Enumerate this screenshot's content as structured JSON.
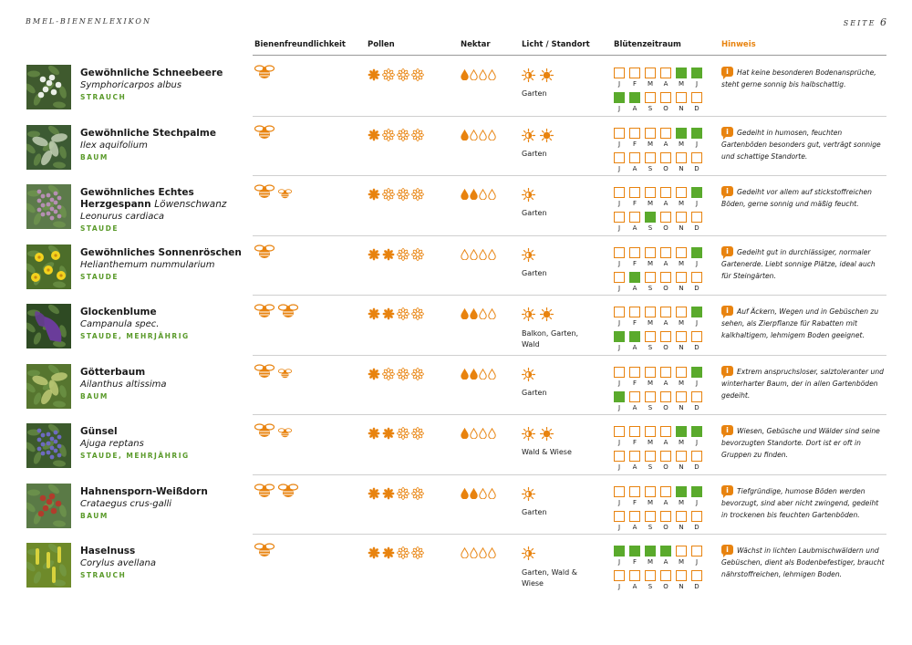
{
  "header": {
    "left": "BMEL-BIENENLEXIKON",
    "right_label": "SEITE",
    "page_number": "6"
  },
  "columns": {
    "bee_friendliness": "Bienenfreundlichkeit",
    "pollen": "Pollen",
    "nectar": "Nektar",
    "light": "Licht / Standort",
    "bloom": "Blütenzeitraum",
    "hint": "Hinweis"
  },
  "colors": {
    "orange": "#e8830f",
    "green": "#5aaa2c",
    "category_green": "#5a9a2a"
  },
  "months_first_half": [
    "J",
    "F",
    "M",
    "A",
    "M",
    "J"
  ],
  "months_second_half": [
    "J",
    "A",
    "S",
    "O",
    "N",
    "D"
  ],
  "info_label": "i",
  "plants": [
    {
      "name": "Gewöhnliche Schneebeere",
      "name_extra": "",
      "latin": "Symphoricarpos albus",
      "category": "STRAUCH",
      "bees": [
        "big"
      ],
      "pollen": 1,
      "nectar": 1,
      "sun": [
        "half",
        "full"
      ],
      "location": "Garten",
      "bloom": [
        0,
        0,
        0,
        0,
        1,
        1,
        1,
        1,
        0,
        0,
        0,
        0
      ],
      "hint": "Hat keine besonderen Bodenansprüche, steht gerne sonnig bis halbschattig.",
      "thumb": {
        "bg": "#3f5a2e",
        "fg": "#e9eee6",
        "kind": "berries"
      }
    },
    {
      "name": "Gewöhnliche Stechpalme",
      "name_extra": "",
      "latin": "Ilex aquifolium",
      "category": "BAUM",
      "bees": [
        "big"
      ],
      "pollen": 1,
      "nectar": 1,
      "sun": [
        "half",
        "full"
      ],
      "location": "Garten",
      "bloom": [
        0,
        0,
        0,
        0,
        1,
        1,
        0,
        0,
        0,
        0,
        0,
        0
      ],
      "hint": "Gedeiht in humosen, feuchten Gartenböden besonders gut, verträgt sonnige und schattige Standorte.",
      "thumb": {
        "bg": "#3c5a33",
        "fg": "#c9d6bb",
        "kind": "leaves"
      }
    },
    {
      "name": "Gewöhnliches Echtes Herzgespann",
      "name_extra": "Löwenschwanz",
      "latin": "Leonurus cardiaca",
      "category": "STAUDE",
      "bees": [
        "big",
        "small"
      ],
      "pollen": 1,
      "nectar": 2,
      "sun": [
        "half"
      ],
      "location": "Garten",
      "bloom": [
        0,
        0,
        0,
        0,
        0,
        1,
        0,
        0,
        1,
        0,
        0,
        0
      ],
      "hint": "Gedeiht vor allem auf stickstoffreichen Böden, gerne sonnig und mäßig feucht.",
      "thumb": {
        "bg": "#5c7a4a",
        "fg": "#b58fb3",
        "kind": "spikes"
      }
    },
    {
      "name": "Gewöhnliches Sonnenröschen",
      "name_extra": "",
      "latin": "Helianthemum nummularium",
      "category": "STAUDE",
      "bees": [
        "big"
      ],
      "pollen": 2,
      "nectar": 0,
      "sun": [
        "half"
      ],
      "location": "Garten",
      "bloom": [
        0,
        0,
        0,
        0,
        0,
        1,
        0,
        1,
        0,
        0,
        0,
        0
      ],
      "hint": "Gedeiht gut in durchlässiger, normaler Gartenerde. Liebt sonnige Plätze, ideal auch für Steingärten.",
      "thumb": {
        "bg": "#4c6d2a",
        "fg": "#f2d21e",
        "kind": "flowers"
      }
    },
    {
      "name": "Glockenblume",
      "name_extra": "",
      "latin": "Campanula spec.",
      "category": "STAUDE, MEHRJÄHRIG",
      "bees": [
        "big",
        "big"
      ],
      "pollen": 2,
      "nectar": 2,
      "sun": [
        "half",
        "full"
      ],
      "location": "Balkon, Garten, Wald",
      "bloom": [
        0,
        0,
        0,
        0,
        0,
        1,
        1,
        1,
        0,
        0,
        0,
        0
      ],
      "hint": "Auf Äckern, Wegen und in Gebüschen zu sehen, als Zierpflanze für Rabatten mit kalkhaltigem, lehmigem Boden geeignet.",
      "thumb": {
        "bg": "#2e4a23",
        "fg": "#6a3c9a",
        "kind": "bell"
      }
    },
    {
      "name": "Götterbaum",
      "name_extra": "",
      "latin": "Ailanthus altissima",
      "category": "BAUM",
      "bees": [
        "big",
        "small"
      ],
      "pollen": 1,
      "nectar": 2,
      "sun": [
        "half"
      ],
      "location": "Garten",
      "bloom": [
        0,
        0,
        0,
        0,
        0,
        1,
        1,
        0,
        0,
        0,
        0,
        0
      ],
      "hint": "Extrem anspruchsloser, salztoleranter und winterharter Baum, der in allen Gartenböden gedeiht.",
      "thumb": {
        "bg": "#56752f",
        "fg": "#c6cf7a",
        "kind": "leaves"
      }
    },
    {
      "name": "Günsel",
      "name_extra": "",
      "latin": "Ajuga reptans",
      "category": "STAUDE, MEHRJÄHRIG",
      "bees": [
        "big",
        "small"
      ],
      "pollen": 2,
      "nectar": 1,
      "sun": [
        "half",
        "full"
      ],
      "location": "Wald & Wiese",
      "bloom": [
        0,
        0,
        0,
        0,
        1,
        1,
        0,
        0,
        0,
        0,
        0,
        0
      ],
      "hint": "Wiesen, Gebüsche und Wälder sind seine bevorzugten Standorte. Dort ist er oft in Gruppen zu finden.",
      "thumb": {
        "bg": "#3c5a2c",
        "fg": "#6d6ac0",
        "kind": "spikes"
      }
    },
    {
      "name": "Hahnensporn-Weißdorn",
      "name_extra": "",
      "latin": "Crataegus crus-galli",
      "category": "BAUM",
      "bees": [
        "big",
        "big"
      ],
      "pollen": 2,
      "nectar": 2,
      "sun": [
        "half"
      ],
      "location": "Garten",
      "bloom": [
        0,
        0,
        0,
        0,
        1,
        1,
        0,
        0,
        0,
        0,
        0,
        0
      ],
      "hint": "Tiefgründige, humose Böden werden bevorzugt, sind aber nicht zwingend, gedeiht in trockenen bis feuchten Gartenböden.",
      "thumb": {
        "bg": "#5a7a46",
        "fg": "#b13c2c",
        "kind": "berries"
      }
    },
    {
      "name": "Haselnuss",
      "name_extra": "",
      "latin": "Corylus avellana",
      "category": "STRAUCH",
      "bees": [
        "big"
      ],
      "pollen": 2,
      "nectar": 0,
      "sun": [
        "half"
      ],
      "location": "Garten, Wald & Wiese",
      "bloom": [
        1,
        1,
        1,
        1,
        0,
        0,
        0,
        0,
        0,
        0,
        0,
        0
      ],
      "hint": "Wächst in lichten Laubmischwäldern und Gebüschen, dient als Bodenbefestiger, braucht nährstoffreichen, lehmigen Boden.",
      "thumb": {
        "bg": "#6e8a2a",
        "fg": "#d8d23c",
        "kind": "catkins"
      }
    }
  ]
}
